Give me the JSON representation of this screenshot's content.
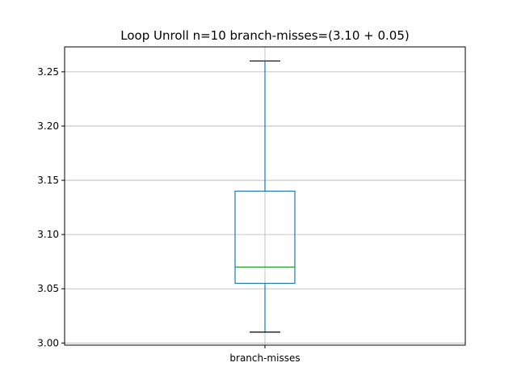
{
  "chart_data": {
    "type": "box",
    "title": "Loop Unroll n=10  branch-misses=(3.10 + 0.05)",
    "xlabel": "",
    "ylabel": "",
    "categories": [
      "branch-misses"
    ],
    "series": [
      {
        "whisker_low": 3.01,
        "q1": 3.055,
        "median": 3.07,
        "q3": 3.14,
        "whisker_high": 3.26
      }
    ],
    "ylim": [
      2.998,
      3.273
    ],
    "yticks": [
      "3.00",
      "3.05",
      "3.10",
      "3.15",
      "3.20",
      "3.25"
    ],
    "grid": true,
    "colors": {
      "box": "#1f77b4",
      "median": "#2ca02c",
      "cap": "#000000",
      "grid": "#b0b0b0",
      "axes": "#000000"
    }
  }
}
